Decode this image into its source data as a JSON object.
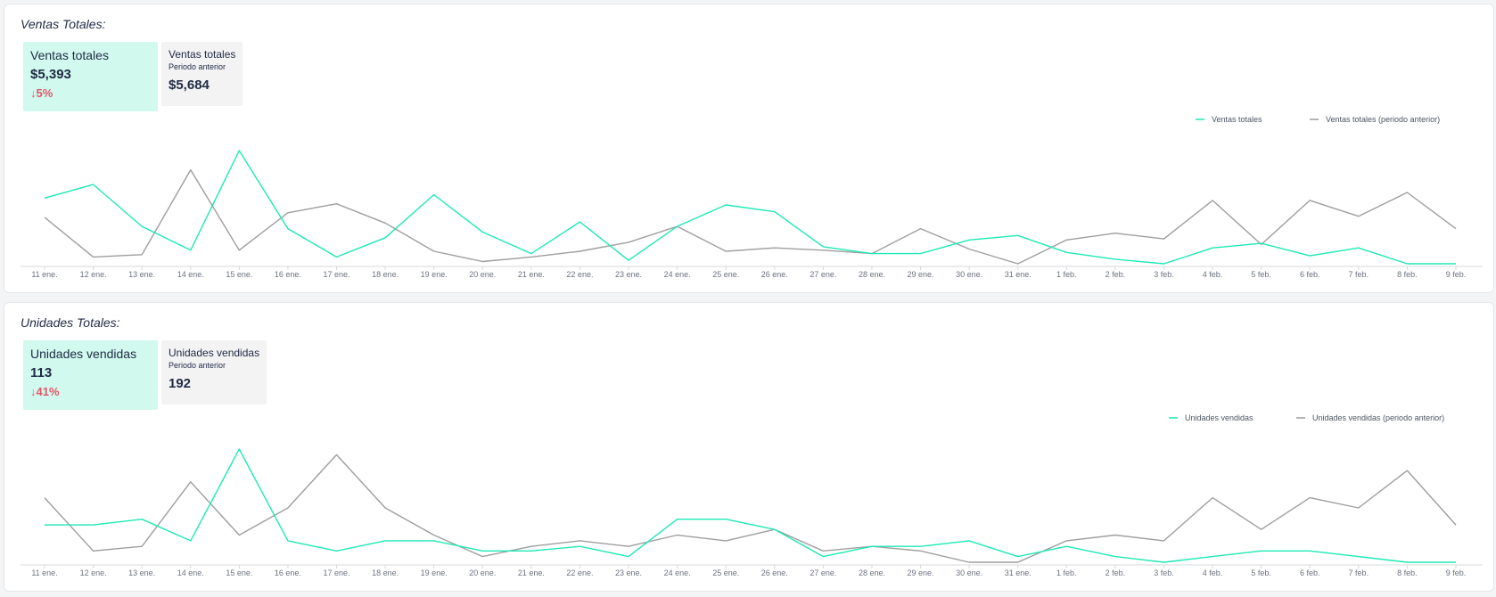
{
  "sections": [
    {
      "title": "Ventas Totales:",
      "current_card": {
        "label": "Ventas totales",
        "value": "$5,393",
        "change": "5%"
      },
      "previous_card": {
        "label": "Ventas totales",
        "sublabel": "Periodo anterior",
        "value": "$5,684"
      }
    },
    {
      "title": "Unidades Totales:",
      "current_card": {
        "label": "Unidades vendidas",
        "value": "113",
        "change": "41%"
      },
      "previous_card": {
        "label": "Unidades vendidas",
        "sublabel": "Periodo anterior",
        "value": "192"
      }
    }
  ],
  "colors": {
    "current": "#1de9b6",
    "previous": "#9e9e9e",
    "decrease": "#e0556b"
  },
  "icons": {
    "change_arrow": "arrow-down-icon",
    "change_arrow_glyph": "↓"
  },
  "chart_data": [
    {
      "type": "line",
      "categories": [
        "11 ene.",
        "12 ene.",
        "13 ene.",
        "14 ene.",
        "15 ene.",
        "16 ene.",
        "17 ene.",
        "18 ene.",
        "19 ene.",
        "20 ene.",
        "21 ene.",
        "22 ene.",
        "23 ene.",
        "24 ene.",
        "25 ene.",
        "26 ene.",
        "27 ene.",
        "28 ene.",
        "29 ene.",
        "30 ene.",
        "31 ene.",
        "1 feb.",
        "2 feb.",
        "3 feb.",
        "4 feb.",
        "5 feb.",
        "6 feb.",
        "7 feb.",
        "8 feb.",
        "9 feb."
      ],
      "ylim": [
        0,
        1
      ],
      "grid": false,
      "legend_position": "top-right",
      "series": [
        {
          "name": "Ventas totales",
          "color": "#1de9b6",
          "values": [
            0.58,
            0.7,
            0.33,
            0.12,
            1.0,
            0.31,
            0.06,
            0.23,
            0.61,
            0.28,
            0.09,
            0.37,
            0.03,
            0.33,
            0.52,
            0.46,
            0.15,
            0.09,
            0.09,
            0.21,
            0.25,
            0.1,
            0.04,
            0.0,
            0.14,
            0.18,
            0.07,
            0.14,
            0.0,
            0.0
          ]
        },
        {
          "name": "Ventas totales (periodo anterior)",
          "color": "#9e9e9e",
          "values": [
            0.41,
            0.06,
            0.08,
            0.83,
            0.12,
            0.45,
            0.53,
            0.36,
            0.11,
            0.02,
            0.06,
            0.11,
            0.19,
            0.33,
            0.11,
            0.14,
            0.12,
            0.09,
            0.31,
            0.13,
            0.0,
            0.21,
            0.27,
            0.22,
            0.56,
            0.17,
            0.56,
            0.42,
            0.63,
            0.31
          ]
        }
      ]
    },
    {
      "type": "line",
      "categories": [
        "11 ene.",
        "12 ene.",
        "13 ene.",
        "14 ene.",
        "15 ene.",
        "16 ene.",
        "17 ene.",
        "18 ene.",
        "19 ene.",
        "20 ene.",
        "21 ene.",
        "22 ene.",
        "23 ene.",
        "24 ene.",
        "25 ene.",
        "26 ene.",
        "27 ene.",
        "28 ene.",
        "29 ene.",
        "30 ene.",
        "31 ene.",
        "1 feb.",
        "2 feb.",
        "3 feb.",
        "4 feb.",
        "5 feb.",
        "6 feb.",
        "7 feb.",
        "8 feb.",
        "9 feb."
      ],
      "ylim": [
        0,
        1
      ],
      "grid": false,
      "legend_position": "top-right",
      "series": [
        {
          "name": "Unidades vendidas",
          "color": "#1de9b6",
          "values": [
            0.33,
            0.33,
            0.38,
            0.19,
            1.0,
            0.19,
            0.1,
            0.19,
            0.19,
            0.1,
            0.1,
            0.14,
            0.05,
            0.38,
            0.38,
            0.29,
            0.05,
            0.14,
            0.14,
            0.19,
            0.05,
            0.14,
            0.05,
            0.0,
            0.05,
            0.1,
            0.1,
            0.05,
            0.0,
            0.0
          ]
        },
        {
          "name": "Unidades vendidas (periodo anterior)",
          "color": "#9e9e9e",
          "values": [
            0.57,
            0.1,
            0.14,
            0.71,
            0.24,
            0.48,
            0.95,
            0.48,
            0.24,
            0.05,
            0.14,
            0.19,
            0.14,
            0.24,
            0.19,
            0.29,
            0.1,
            0.14,
            0.1,
            0.0,
            0.0,
            0.19,
            0.24,
            0.19,
            0.57,
            0.29,
            0.57,
            0.48,
            0.81,
            0.33
          ]
        }
      ]
    }
  ]
}
